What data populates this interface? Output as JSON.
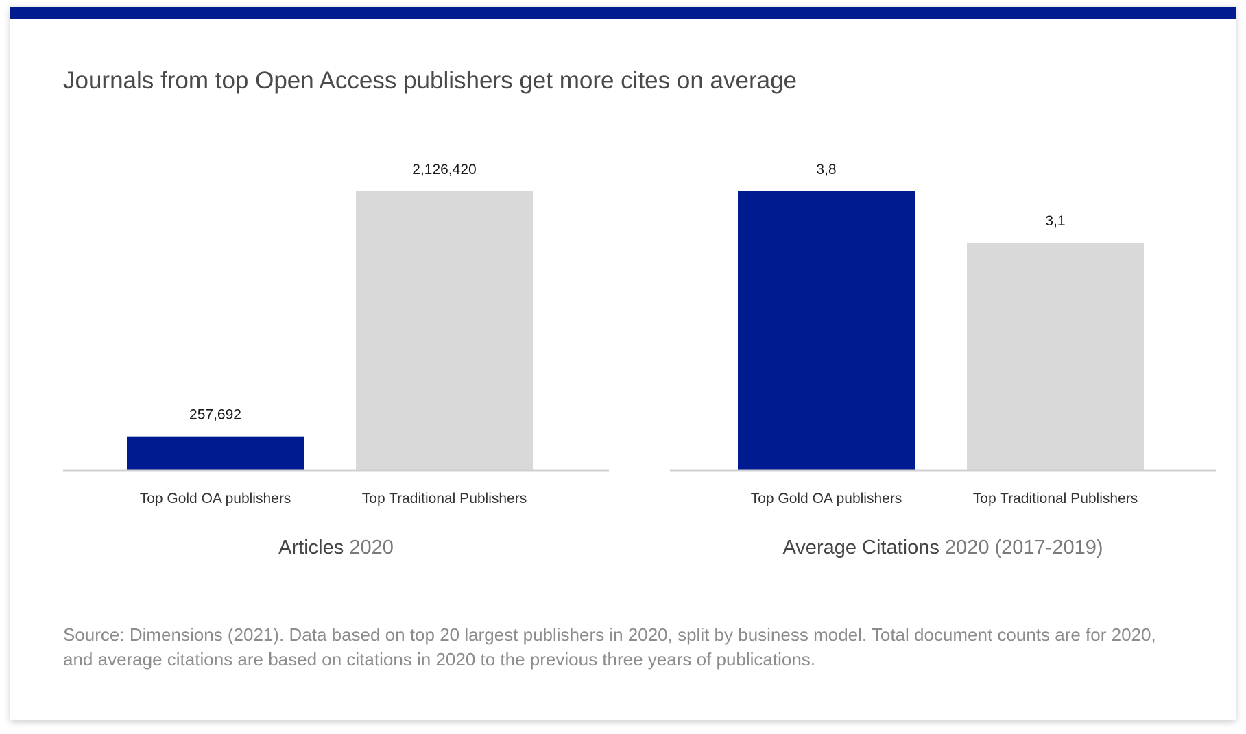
{
  "title": "Journals from top Open Access publishers get more cites on average",
  "colors": {
    "accent": "#001a8f",
    "gray_bar": "#d9d9d9",
    "baseline": "#d0d0d0"
  },
  "charts": [
    {
      "caption_main": "Articles",
      "caption_sub": "2020"
    },
    {
      "caption_main": "Average Citations",
      "caption_sub": "2020 (2017-2019)"
    }
  ],
  "chart_data": [
    {
      "type": "bar",
      "categories": [
        "Top Gold OA publishers",
        "Top Traditional Publishers"
      ],
      "values": [
        257692,
        2126420
      ],
      "value_labels": [
        "257,692",
        "2,126,420"
      ],
      "ylim": [
        0,
        2126420
      ],
      "bar_colors": [
        "#001a8f",
        "#d9d9d9"
      ],
      "xlabel": "Articles 2020"
    },
    {
      "type": "bar",
      "categories": [
        "Top Gold OA publishers",
        "Top Traditional Publishers"
      ],
      "values": [
        3.8,
        3.1
      ],
      "value_labels": [
        "3,8",
        "3,1"
      ],
      "ylim": [
        0,
        3.8
      ],
      "bar_colors": [
        "#001a8f",
        "#d9d9d9"
      ],
      "xlabel": "Average Citations 2020 (2017-2019)"
    }
  ],
  "source": "Source: Dimensions (2021). Data based on top 20 largest publishers in 2020, split by business model. Total document counts are for 2020, and average citations are based on citations in 2020 to the previous three years of publications."
}
